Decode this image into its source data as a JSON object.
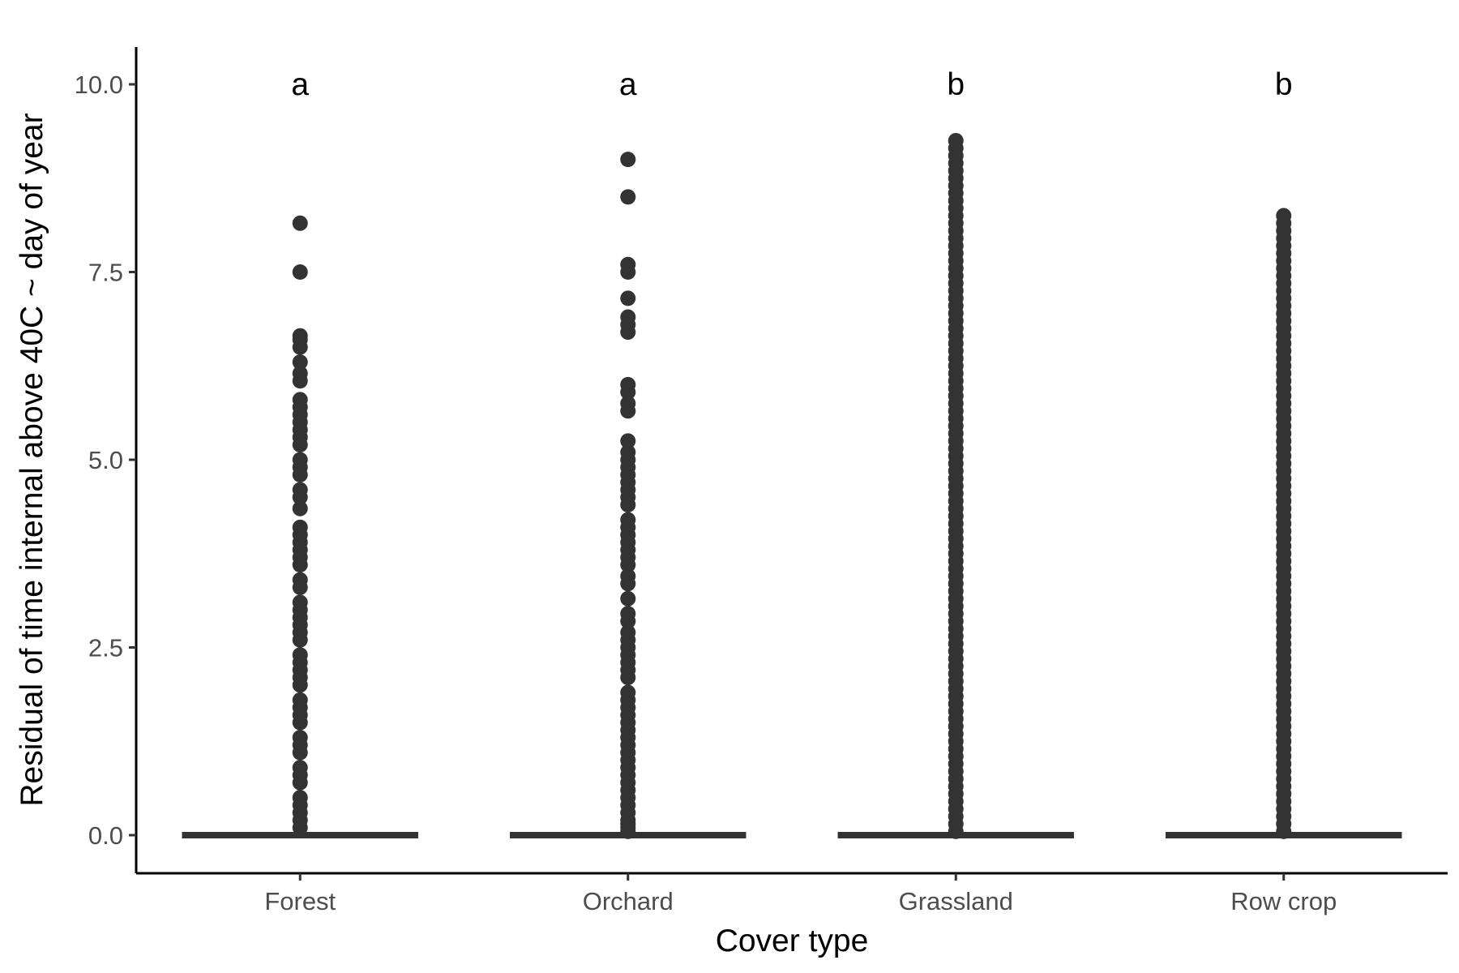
{
  "chart_data": {
    "type": "boxplot",
    "title": "",
    "xlabel": "Cover type",
    "ylabel": "Residual of time internal above 40C ~ day of year",
    "ylim": [
      -0.5,
      10.5
    ],
    "y_ticks": [
      0.0,
      2.5,
      5.0,
      7.5,
      10.0
    ],
    "y_tick_labels": [
      "0.0",
      "2.5",
      "5.0",
      "7.5",
      "10.0"
    ],
    "categories": [
      "Forest",
      "Orchard",
      "Grassland",
      "Row crop"
    ],
    "group_letters": [
      "a",
      "a",
      "b",
      "b"
    ],
    "group_letter_y": 10.0,
    "median": [
      0,
      0,
      0,
      0
    ],
    "q1": [
      0,
      0,
      0,
      0
    ],
    "q3": [
      0,
      0,
      0,
      0
    ],
    "outliers": [
      [
        0.1,
        0.2,
        0.3,
        0.4,
        0.5,
        0.7,
        0.8,
        0.9,
        1.1,
        1.2,
        1.3,
        1.5,
        1.6,
        1.7,
        1.8,
        2.0,
        2.1,
        2.2,
        2.3,
        2.4,
        2.6,
        2.7,
        2.8,
        2.9,
        3.0,
        3.1,
        3.3,
        3.4,
        3.6,
        3.7,
        3.8,
        3.9,
        4.0,
        4.1,
        4.35,
        4.5,
        4.6,
        4.8,
        4.9,
        5.0,
        5.2,
        5.3,
        5.4,
        5.5,
        5.6,
        5.7,
        5.8,
        6.05,
        6.15,
        6.3,
        6.5,
        6.6,
        6.65,
        7.5,
        8.15
      ],
      [
        0.05,
        0.1,
        0.15,
        0.2,
        0.3,
        0.4,
        0.5,
        0.6,
        0.7,
        0.8,
        0.9,
        1.0,
        1.1,
        1.2,
        1.3,
        1.4,
        1.5,
        1.6,
        1.7,
        1.8,
        1.9,
        2.1,
        2.2,
        2.3,
        2.4,
        2.5,
        2.6,
        2.7,
        2.85,
        2.95,
        3.15,
        3.35,
        3.45,
        3.6,
        3.7,
        3.8,
        3.9,
        4.0,
        4.1,
        4.2,
        4.4,
        4.5,
        4.6,
        4.7,
        4.8,
        4.9,
        5.0,
        5.1,
        5.25,
        5.65,
        5.75,
        5.9,
        6.0,
        6.7,
        6.8,
        6.9,
        7.15,
        7.5,
        7.6,
        8.5,
        9.0
      ],
      {
        "dense_from": 0.05,
        "dense_to": 9.25,
        "step": 0.1
      },
      {
        "dense_from": 0.05,
        "dense_to": 8.3,
        "step": 0.1
      }
    ]
  }
}
